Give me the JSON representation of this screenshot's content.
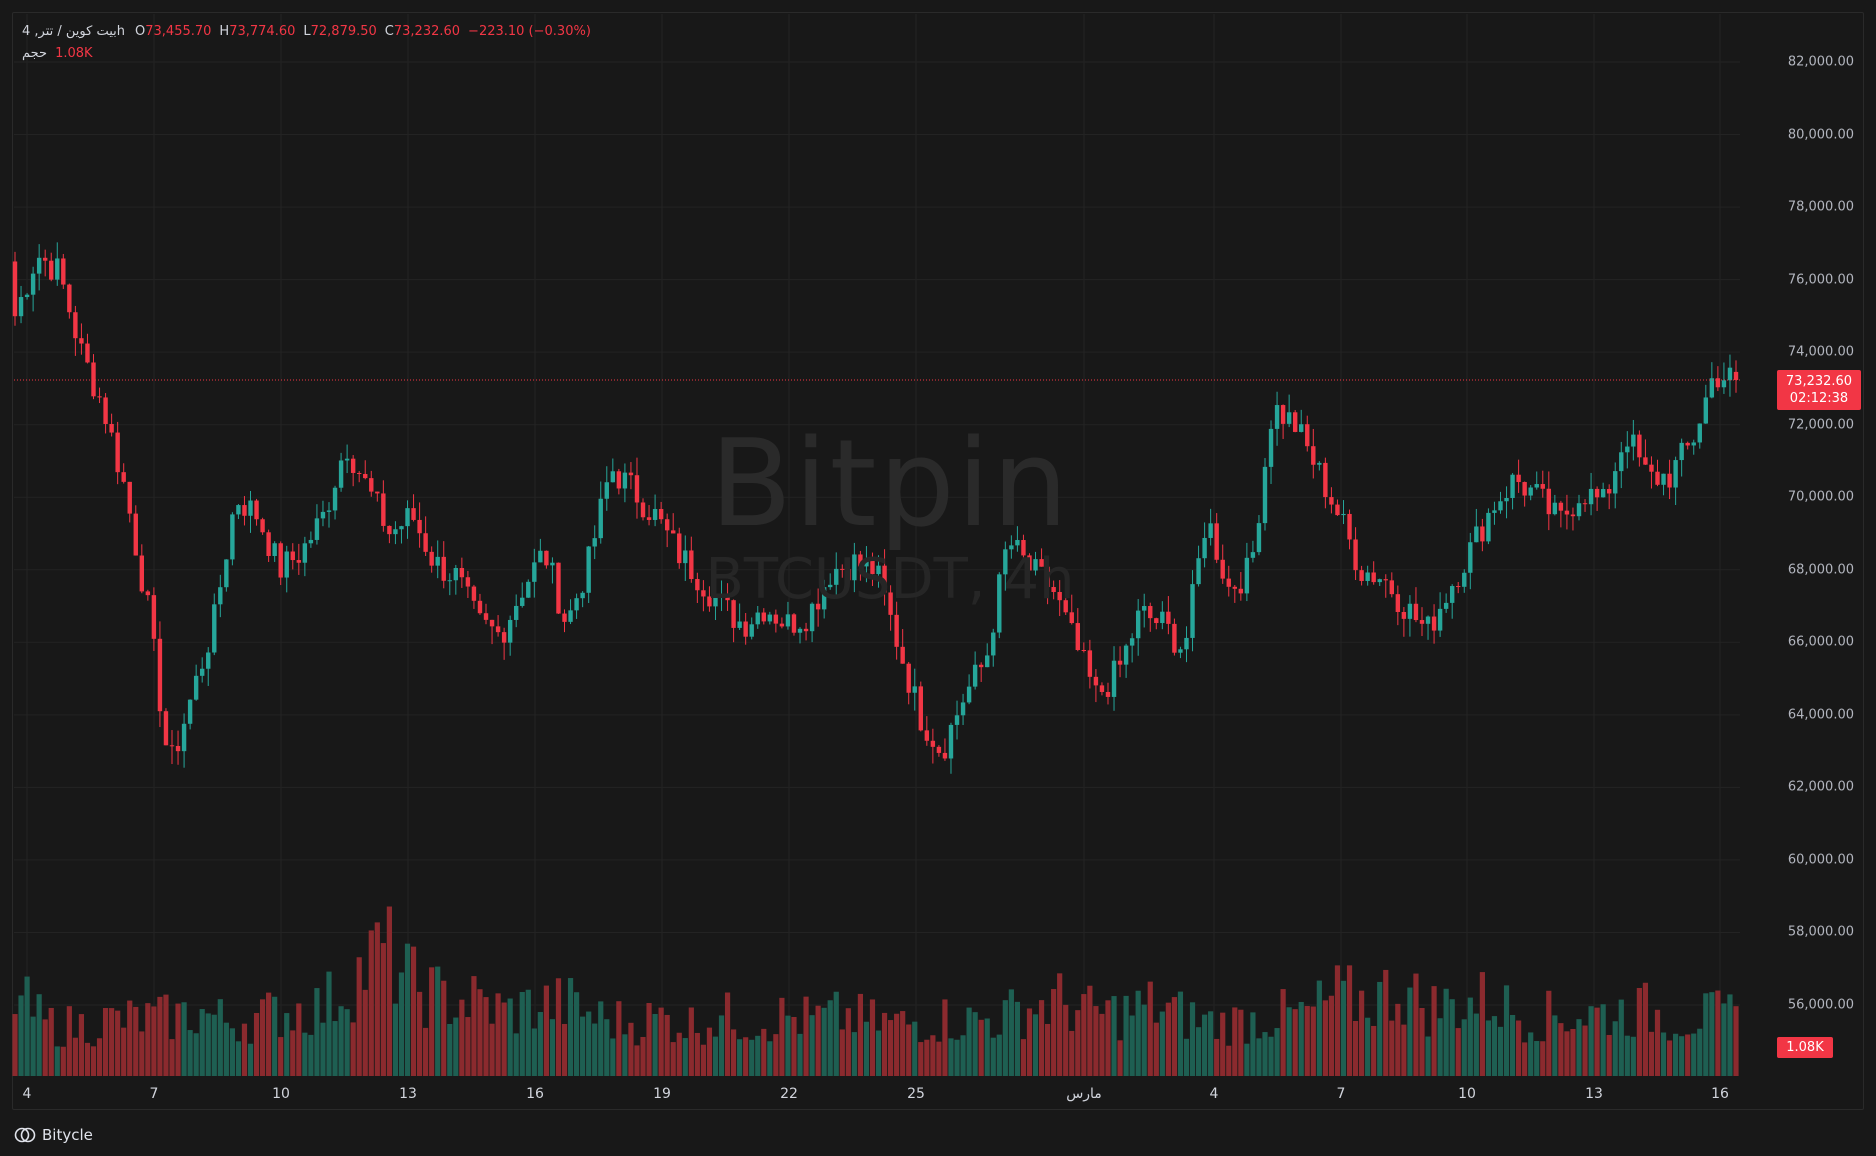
{
  "legend": {
    "symbol": "بیت کوین / تتر, 4h",
    "open_key": "O",
    "open_value": "73,455.70",
    "high_key": "H",
    "high_value": "73,774.60",
    "low_key": "L",
    "low_value": "72,879.50",
    "close_key": "C",
    "close_value": "73,232.60",
    "change": "−223.10 (−0.30%)",
    "volume_label": "حجم",
    "volume_value": "1.08K"
  },
  "watermark": {
    "title": "Bitpin",
    "subtitle": "BTCUSDT, 4h"
  },
  "price_axis": {
    "labels": [
      "82,000.00",
      "80,000.00",
      "78,000.00",
      "76,000.00",
      "74,000.00",
      "72,000.00",
      "70,000.00",
      "68,000.00",
      "66,000.00",
      "64,000.00",
      "62,000.00",
      "60,000.00",
      "58,000.00",
      "56,000.00"
    ]
  },
  "current_price": {
    "price": "73,232.60",
    "countdown": "02:12:38",
    "volume": "1.08K"
  },
  "time_axis": {
    "labels": [
      "4",
      "7",
      "10",
      "13",
      "16",
      "19",
      "22",
      "25",
      "مارس",
      "4",
      "7",
      "10",
      "13",
      "16"
    ]
  },
  "footer": {
    "brand": "Bitycle",
    "logo_icon": "bitycle-logo-icon"
  },
  "colors": {
    "up": "#26a69a",
    "down": "#f23645",
    "up_volume": "#1e5f52",
    "down_volume": "#8b2a2e",
    "background": "#181818",
    "grid": "#232323"
  },
  "chart_data": {
    "type": "candlestick",
    "symbol": "BTCUSDT",
    "interval": "4h",
    "ylim": [
      54000,
      83000
    ],
    "last_price": 73232.6,
    "x": [
      "4",
      "7",
      "10",
      "13",
      "16",
      "19",
      "22",
      "25",
      "مارس",
      "4",
      "7",
      "10",
      "13",
      "16"
    ],
    "close_path": [
      75000,
      76700,
      76200,
      74000,
      72500,
      70200,
      67000,
      62500,
      64500,
      66500,
      70000,
      69500,
      68000,
      68500,
      69500,
      71500,
      70200,
      69000,
      69500,
      68200,
      67800,
      66500,
      66200,
      67500,
      68500,
      66500,
      68200,
      70800,
      70200,
      69500,
      68500,
      67800,
      67000,
      66500,
      67000,
      66500,
      66800,
      68000,
      68200,
      68000,
      66000,
      64000,
      63000,
      64500,
      65500,
      68800,
      68000,
      67500,
      66000,
      64500,
      65200,
      66800,
      66500,
      65800,
      69500,
      67500,
      68000,
      72500,
      72000,
      70800,
      69500,
      68000,
      67800,
      67000,
      66300,
      67500,
      68600,
      69800,
      70500,
      70000,
      69300,
      70200,
      69800,
      71800,
      70500,
      70600,
      71500,
      73400,
      73232.6
    ],
    "volume_values": [
      1.45,
      0.95,
      0.9,
      1.0,
      1.03,
      1.05,
      1.15,
      0.98,
      1.08,
      1.2,
      1.25,
      1.75,
      2.3,
      1.62,
      1.4,
      1.35,
      1.15,
      1.3,
      1.3,
      1.05,
      0.98,
      1.05,
      0.95,
      1.08,
      1.0,
      1.08,
      1.02,
      1.1,
      0.98,
      0.95,
      1.05,
      1.0,
      1.05,
      1.25,
      1.35,
      1.15,
      1.15,
      1.28,
      1.1,
      0.95,
      1.0,
      1.1,
      1.1,
      1.45,
      1.35,
      1.6,
      1.25,
      1.3,
      1.4,
      1.1,
      1.08,
      1.12,
      1.15,
      1.2,
      1.05,
      1.08,
      1.08
    ]
  }
}
